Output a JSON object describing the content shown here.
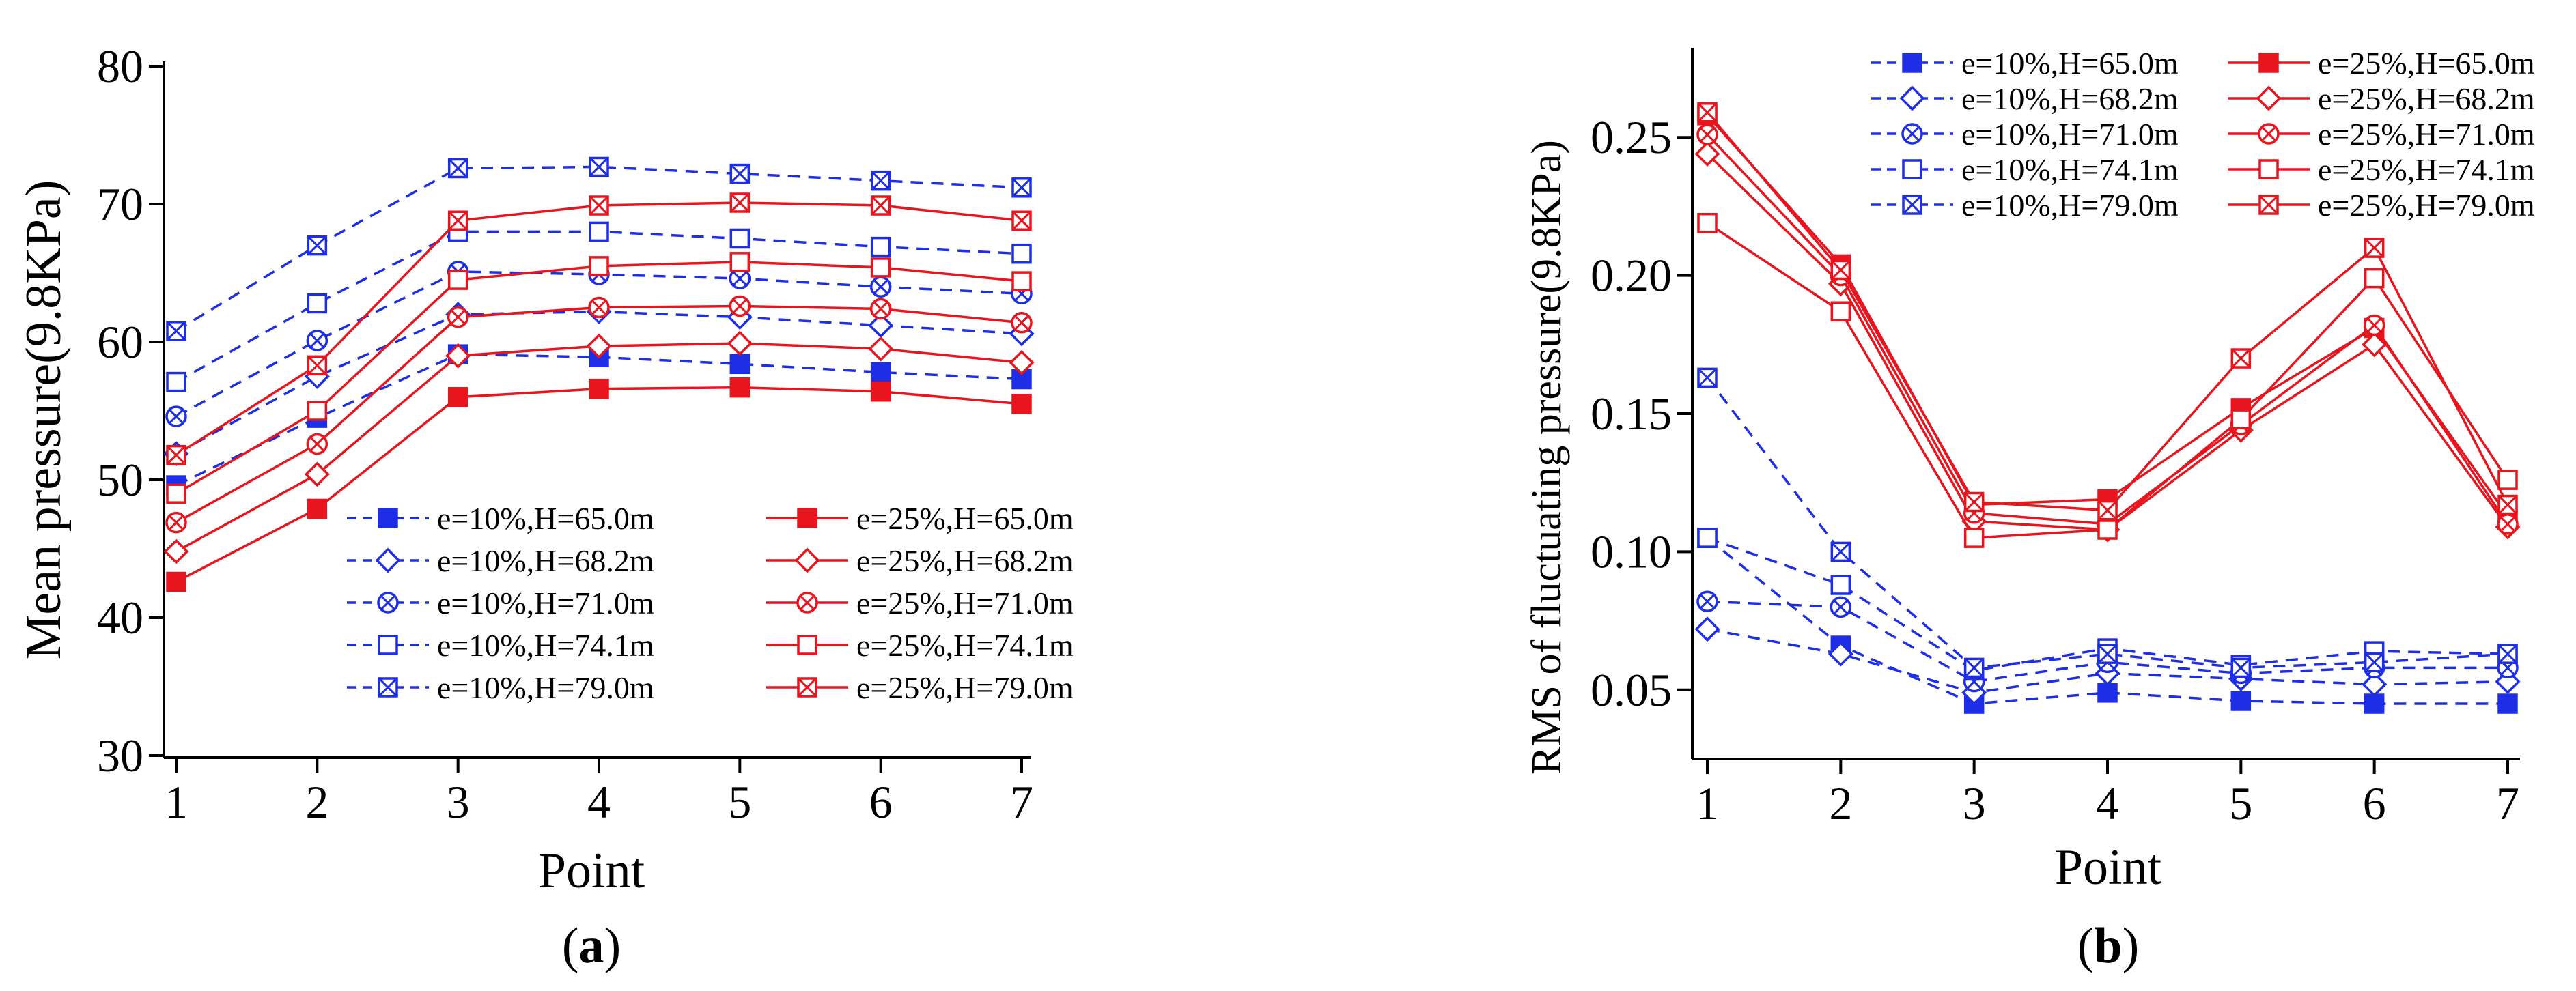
{
  "colors": {
    "blue": "#1e2ee6",
    "red": "#e8141e"
  },
  "chart_data": [
    {
      "type": "line",
      "panel_label": "a",
      "title": "",
      "xlabel": "Point",
      "ylabel": "Mean pressure(9.8KPa)",
      "x": [
        1,
        2,
        3,
        4,
        5,
        6,
        7
      ],
      "x_ticks": [
        "1",
        "2",
        "3",
        "4",
        "5",
        "6",
        "7"
      ],
      "ylim": [
        30,
        80
      ],
      "y_ticks": [
        "30",
        "40",
        "50",
        "60",
        "70",
        "80"
      ],
      "legend_placement": "bottom-right",
      "series": [
        {
          "name": "e=10%,H=65.0m",
          "style": "dashed",
          "color": "blue",
          "marker": "square-filled",
          "values": [
            49.6,
            54.5,
            59.1,
            58.9,
            58.4,
            57.8,
            57.3
          ]
        },
        {
          "name": "e=10%,H=68.2m",
          "style": "dashed",
          "color": "blue",
          "marker": "diamond-open",
          "values": [
            51.9,
            57.5,
            62.0,
            62.2,
            61.8,
            61.2,
            60.6
          ]
        },
        {
          "name": "e=10%,H=71.0m",
          "style": "dashed",
          "color": "blue",
          "marker": "circle-x",
          "values": [
            54.6,
            60.1,
            65.1,
            64.9,
            64.6,
            64.0,
            63.5
          ]
        },
        {
          "name": "e=10%,H=74.1m",
          "style": "dashed",
          "color": "blue",
          "marker": "square-open",
          "values": [
            57.1,
            62.8,
            68.0,
            68.0,
            67.5,
            66.9,
            66.4
          ]
        },
        {
          "name": "e=10%,H=79.0m",
          "style": "dashed",
          "color": "blue",
          "marker": "square-x",
          "values": [
            60.8,
            67.0,
            72.6,
            72.7,
            72.2,
            71.7,
            71.2
          ]
        },
        {
          "name": "e=25%,H=65.0m",
          "style": "solid",
          "color": "red",
          "marker": "square-filled",
          "values": [
            42.6,
            47.9,
            56.0,
            56.6,
            56.7,
            56.4,
            55.5
          ]
        },
        {
          "name": "e=25%,H=68.2m",
          "style": "solid",
          "color": "red",
          "marker": "diamond-open",
          "values": [
            44.8,
            50.4,
            59.0,
            59.7,
            59.9,
            59.5,
            58.5
          ]
        },
        {
          "name": "e=25%,H=71.0m",
          "style": "solid",
          "color": "red",
          "marker": "circle-x",
          "values": [
            46.9,
            52.6,
            61.8,
            62.5,
            62.6,
            62.4,
            61.4
          ]
        },
        {
          "name": "e=25%,H=74.1m",
          "style": "solid",
          "color": "red",
          "marker": "square-open",
          "values": [
            49.0,
            55.0,
            64.5,
            65.5,
            65.8,
            65.4,
            64.4
          ]
        },
        {
          "name": "e=25%,H=79.0m",
          "style": "solid",
          "color": "red",
          "marker": "square-x",
          "values": [
            51.8,
            58.3,
            68.8,
            69.9,
            70.1,
            69.9,
            68.8
          ]
        }
      ]
    },
    {
      "type": "line",
      "panel_label": "b",
      "title": "",
      "xlabel": "Point",
      "ylabel": "RMS of fluctuating pressure(9.8KPa)",
      "x": [
        1,
        2,
        3,
        4,
        5,
        6,
        7
      ],
      "x_ticks": [
        "1",
        "2",
        "3",
        "4",
        "5",
        "6",
        "7"
      ],
      "ylim": [
        0.025,
        0.275
      ],
      "y_ticks": [
        "0.05",
        "0.10",
        "0.15",
        "0.20",
        "0.25"
      ],
      "legend_placement": "top-right",
      "series": [
        {
          "name": "e=10%,H=65.0m",
          "style": "dashed",
          "color": "blue",
          "marker": "square-filled",
          "values": [
            0.105,
            0.066,
            0.045,
            0.049,
            0.046,
            0.045,
            0.045
          ]
        },
        {
          "name": "e=10%,H=68.2m",
          "style": "dashed",
          "color": "blue",
          "marker": "diamond-open",
          "values": [
            0.072,
            0.063,
            0.049,
            0.056,
            0.054,
            0.052,
            0.053
          ]
        },
        {
          "name": "e=10%,H=71.0m",
          "style": "dashed",
          "color": "blue",
          "marker": "circle-x",
          "values": [
            0.082,
            0.08,
            0.053,
            0.06,
            0.056,
            0.058,
            0.058
          ]
        },
        {
          "name": "e=10%,H=74.1m",
          "style": "dashed",
          "color": "blue",
          "marker": "square-open",
          "values": [
            0.105,
            0.088,
            0.057,
            0.065,
            0.059,
            0.064,
            0.063
          ]
        },
        {
          "name": "e=10%,H=79.0m",
          "style": "dashed",
          "color": "blue",
          "marker": "square-x",
          "values": [
            0.163,
            0.1,
            0.058,
            0.063,
            0.058,
            0.06,
            0.063
          ]
        },
        {
          "name": "e=25%,H=65.0m",
          "style": "solid",
          "color": "red",
          "marker": "square-filled",
          "values": [
            0.258,
            0.204,
            0.117,
            0.119,
            0.152,
            0.181,
            0.113
          ]
        },
        {
          "name": "e=25%,H=68.2m",
          "style": "solid",
          "color": "red",
          "marker": "diamond-open",
          "values": [
            0.244,
            0.197,
            0.111,
            0.108,
            0.144,
            0.175,
            0.109
          ]
        },
        {
          "name": "e=25%,H=71.0m",
          "style": "solid",
          "color": "red",
          "marker": "circle-x",
          "values": [
            0.251,
            0.2,
            0.114,
            0.11,
            0.146,
            0.182,
            0.11
          ]
        },
        {
          "name": "e=25%,H=74.1m",
          "style": "solid",
          "color": "red",
          "marker": "square-open",
          "values": [
            0.219,
            0.187,
            0.105,
            0.108,
            0.148,
            0.199,
            0.126
          ]
        },
        {
          "name": "e=25%,H=79.0m",
          "style": "solid",
          "color": "red",
          "marker": "square-x",
          "values": [
            0.259,
            0.202,
            0.118,
            0.115,
            0.17,
            0.21,
            0.117
          ]
        }
      ]
    }
  ]
}
